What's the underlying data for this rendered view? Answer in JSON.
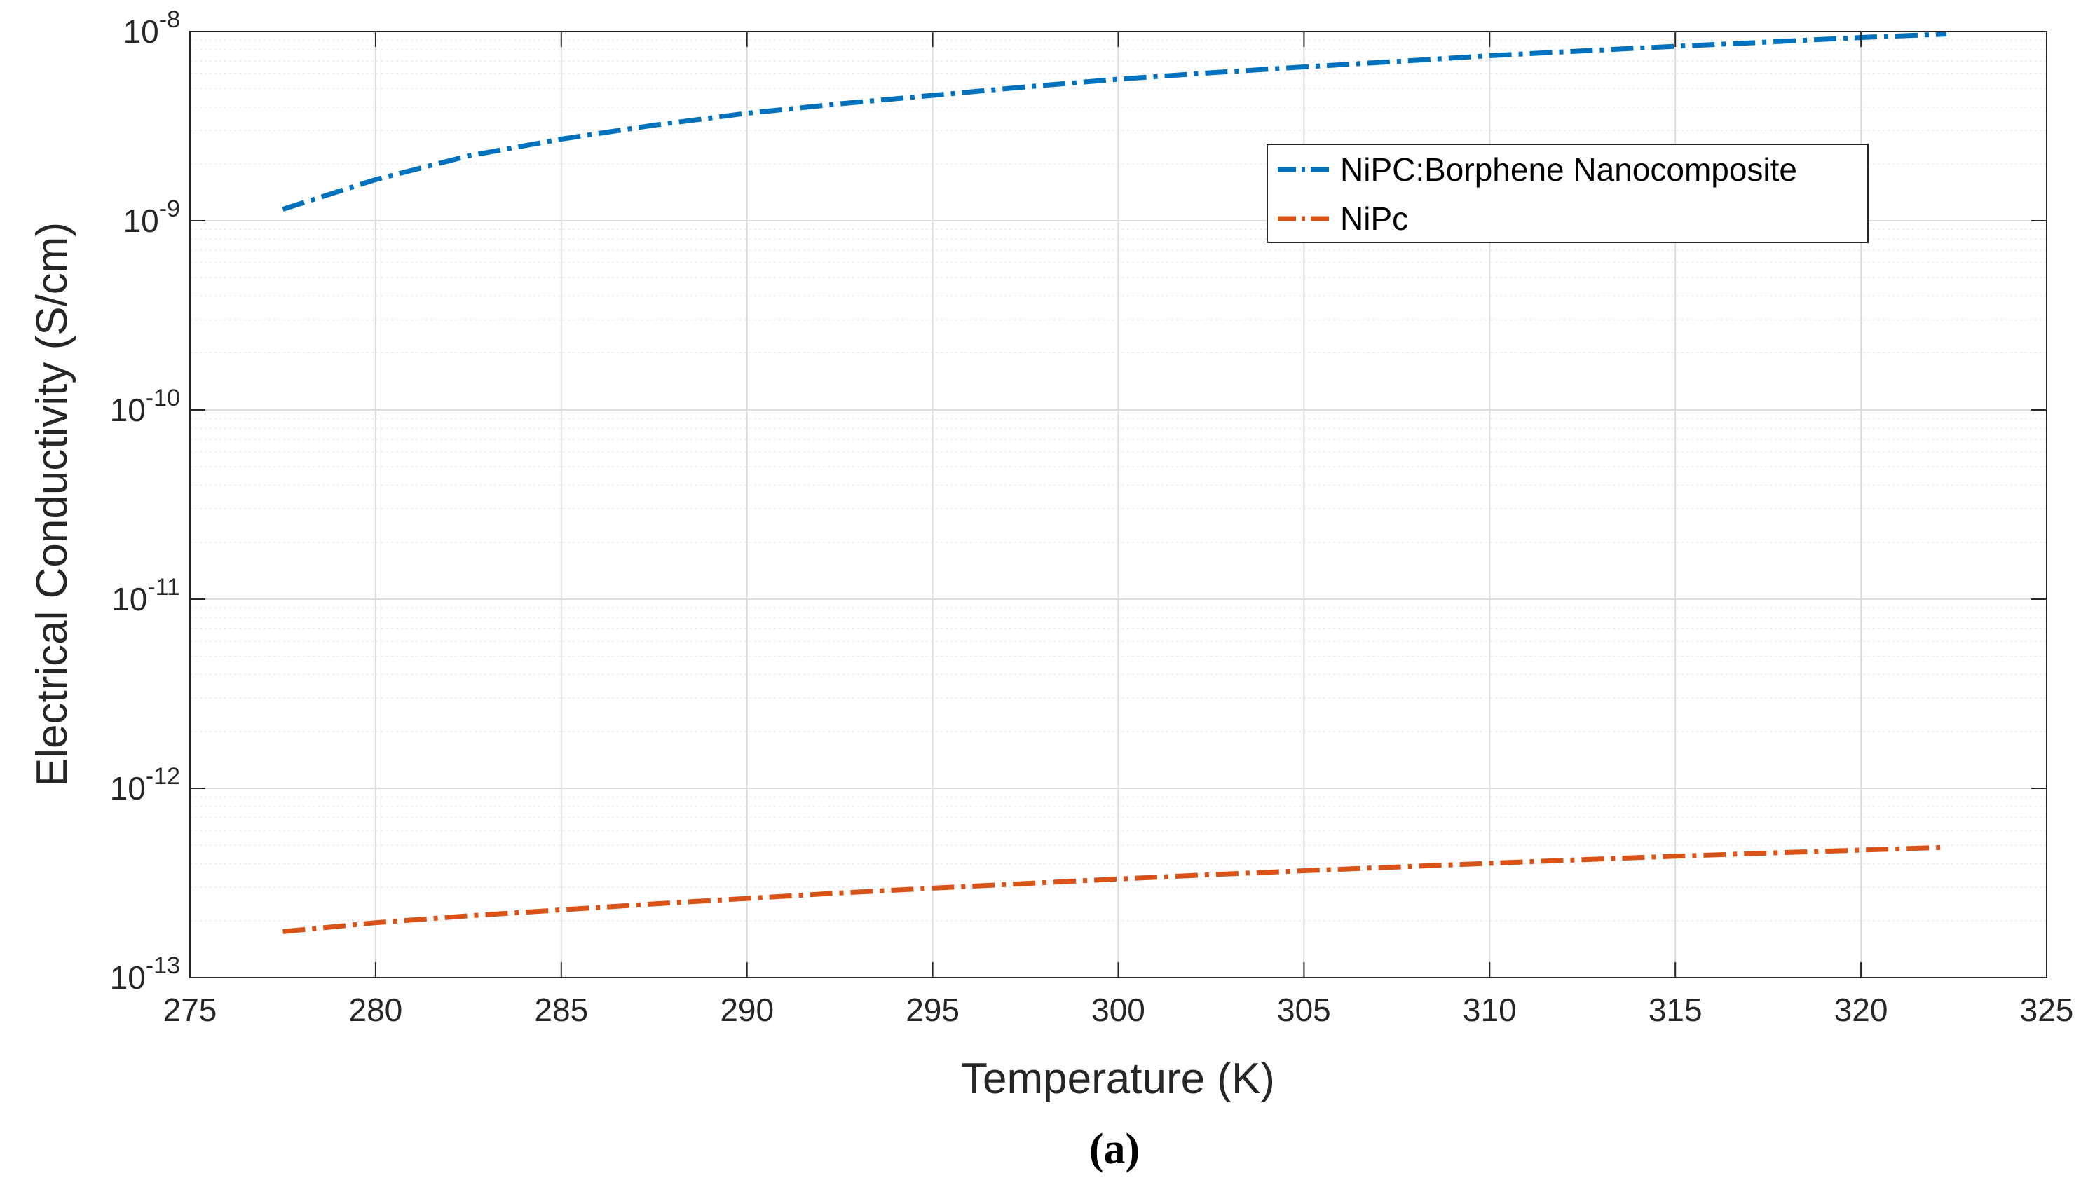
{
  "chart_data": {
    "type": "line",
    "xlabel": "Temperature (K)",
    "ylabel": "Electrical Conductivity (S/cm)",
    "xlim": [
      275,
      325
    ],
    "ylim": [
      1e-13,
      1e-08
    ],
    "y_scale": "log",
    "x_ticks": [
      275,
      280,
      285,
      290,
      295,
      300,
      305,
      310,
      315,
      320,
      325
    ],
    "x_tick_labels": [
      "275",
      "280",
      "285",
      "290",
      "295",
      "300",
      "305",
      "310",
      "315",
      "320",
      "325"
    ],
    "y_ticks": [
      {
        "value": 1e-13,
        "base": "10",
        "exp": "-13"
      },
      {
        "value": 1e-12,
        "base": "10",
        "exp": "-12"
      },
      {
        "value": 1e-11,
        "base": "10",
        "exp": "-11"
      },
      {
        "value": 1e-10,
        "base": "10",
        "exp": "-10"
      },
      {
        "value": 1e-09,
        "base": "10",
        "exp": "-9"
      },
      {
        "value": 1e-08,
        "base": "10",
        "exp": "-8"
      }
    ],
    "grid": true,
    "legend_position": "top-right",
    "caption": "(a)",
    "series": [
      {
        "name": "NiPC:Borphene Nanocomposite",
        "color": "#0072BD",
        "line_style": "dash-dot",
        "x": [
          277.5,
          280,
          282.5,
          285,
          287.5,
          290,
          292.5,
          295,
          297.5,
          300,
          302.5,
          305,
          307.5,
          310,
          312.5,
          315,
          317.5,
          320,
          322.3
        ],
        "y": [
          1.15e-09,
          1.65e-09,
          2.2e-09,
          2.7e-09,
          3.2e-09,
          3.7e-09,
          4.15e-09,
          4.6e-09,
          5.1e-09,
          5.6e-09,
          6.05e-09,
          6.5e-09,
          6.95e-09,
          7.45e-09,
          7.9e-09,
          8.35e-09,
          8.8e-09,
          9.3e-09,
          9.7e-09
        ]
      },
      {
        "name": "NiPc",
        "color": "#D95319",
        "line_style": "dash-dot",
        "x": [
          277.5,
          280,
          282.5,
          285,
          287.5,
          290,
          292.5,
          295,
          297.5,
          300,
          302.5,
          305,
          307.5,
          310,
          312.5,
          315,
          317.5,
          320,
          322.3
        ],
        "y": [
          1.75e-13,
          1.95e-13,
          2.12e-13,
          2.28e-13,
          2.45e-13,
          2.62e-13,
          2.8e-13,
          2.97e-13,
          3.14e-13,
          3.32e-13,
          3.5e-13,
          3.67e-13,
          3.84e-13,
          4.02e-13,
          4.2e-13,
          4.38e-13,
          4.55e-13,
          4.72e-13,
          4.88e-13
        ]
      }
    ]
  }
}
